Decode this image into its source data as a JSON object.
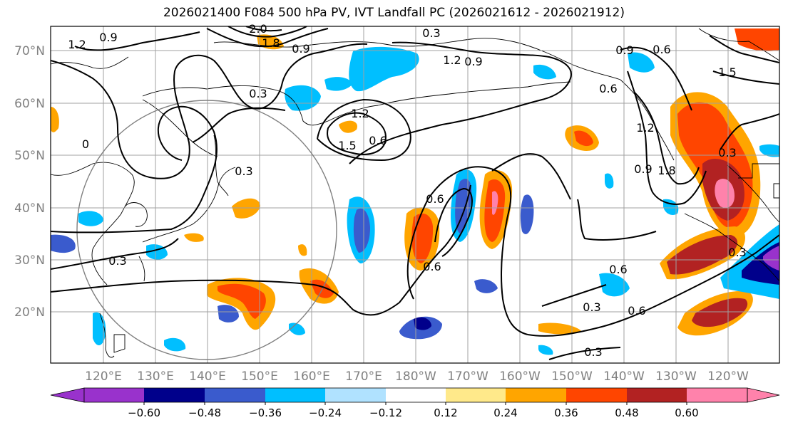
{
  "title": "2026021400 F084 500 hPa PV, IVT Landfall PC (2026021612 - 2026021912)",
  "lat_labels": [
    "70°N",
    "60°N",
    "50°N",
    "40°N",
    "30°N",
    "20°N"
  ],
  "lon_labels": [
    "120°E",
    "130°E",
    "140°E",
    "150°E",
    "160°E",
    "170°E",
    "180°W",
    "170°W",
    "160°W",
    "150°W",
    "140°W",
    "130°W",
    "120°W"
  ],
  "colorbar": {
    "ticks": [
      "−0.60",
      "−0.48",
      "−0.36",
      "−0.24",
      "−0.12",
      "0.12",
      "0.24",
      "0.36",
      "0.48",
      "0.60"
    ],
    "colors": [
      "#9932cc",
      "#00008b",
      "#3a5bcd",
      "#00bfff",
      "#b0e2ff",
      "#ffffff",
      "#ffe98a",
      "#ffa500",
      "#ff4500",
      "#b22222",
      "#ff82ab"
    ]
  },
  "contour_labels": [
    "0.9",
    "1.2",
    "2.0",
    "1.8",
    "0.9",
    "0.3",
    "1.2",
    "0.9",
    "0.9",
    "0.6",
    "1.5",
    "0.6",
    "0.3",
    "1.2",
    "1.5",
    "0.6",
    "0.3",
    "0.6",
    "0.6",
    "1.2",
    "0.9",
    "1.8",
    "0.3",
    "0.6",
    "0.3",
    "0.6",
    "0.3",
    "0.3",
    "0.3",
    "0"
  ]
}
